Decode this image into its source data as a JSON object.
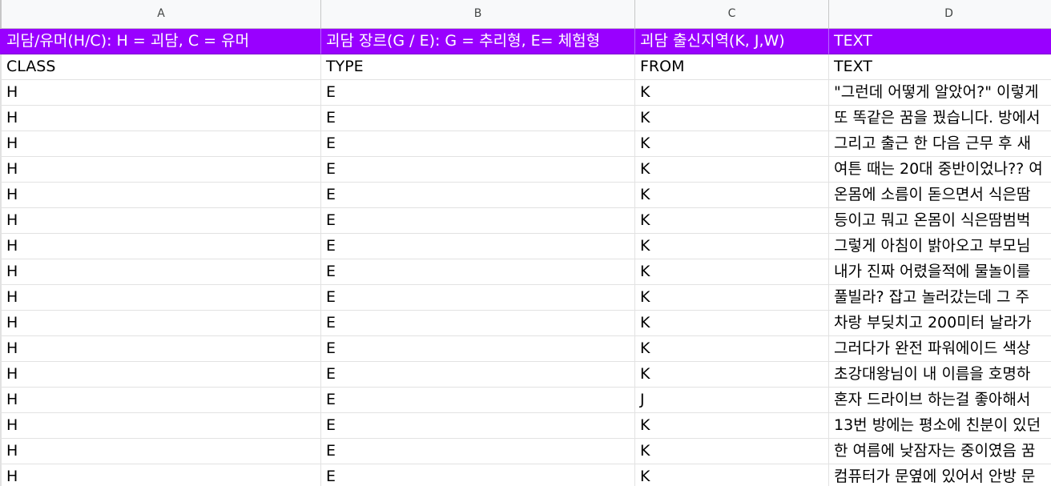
{
  "columns": [
    "A",
    "B",
    "C",
    "D"
  ],
  "header_row": {
    "a": "괴담/유머(H/C): H = 괴담, C = 유머",
    "b": "괴담 장르(G / E): G = 추리형, E= 체험형",
    "c": "괴담 출신지역(K, J,W)",
    "d": "TEXT"
  },
  "header_fill_color": "#9900ff",
  "rows": [
    [
      "CLASS",
      "TYPE",
      "FROM",
      "TEXT"
    ],
    [
      "H",
      "E",
      "K",
      "\"그런데 어떻게 알았어?\" 이렇게"
    ],
    [
      "H",
      "E",
      "K",
      "또 똑같은 꿈을 꿨습니다. 방에서"
    ],
    [
      "H",
      "E",
      "K",
      "그리고 출근 한 다음 근무 후 새"
    ],
    [
      "H",
      "E",
      "K",
      "여튼 때는 20대 중반이었나?? 여"
    ],
    [
      "H",
      "E",
      "K",
      "온몸에 소름이 돋으면서 식은땀"
    ],
    [
      "H",
      "E",
      "K",
      "등이고 뭐고 온몸이 식은땀범벅"
    ],
    [
      "H",
      "E",
      "K",
      "그렇게 아침이 밝아오고 부모님"
    ],
    [
      "H",
      "E",
      "K",
      "내가 진짜 어렸을적에 물놀이를"
    ],
    [
      "H",
      "E",
      "K",
      "풀빌라? 잡고 놀러갔는데 그 주"
    ],
    [
      "H",
      "E",
      "K",
      "차랑 부딪치고 200미터 날라가"
    ],
    [
      "H",
      "E",
      "K",
      "그러다가 완전 파워에이드 색상"
    ],
    [
      "H",
      "E",
      "K",
      "초강대왕님이 내 이름을 호명하"
    ],
    [
      "H",
      "E",
      "J",
      "혼자 드라이브 하는걸 좋아해서"
    ],
    [
      "H",
      "E",
      "K",
      "13번 방에는 평소에 친분이 있던"
    ],
    [
      "H",
      "E",
      "K",
      "한 여름에 낮잠자는 중이였음 꿈"
    ],
    [
      "H",
      "E",
      "K",
      "컴퓨터가 문옆에 있어서 안방 문"
    ]
  ]
}
